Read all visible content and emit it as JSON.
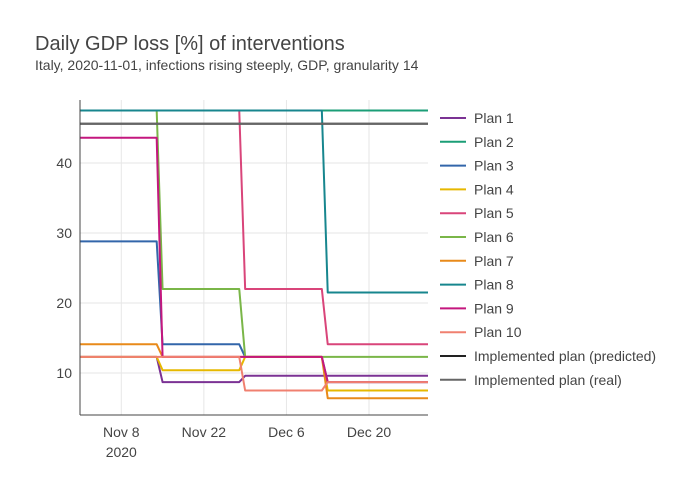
{
  "chart_data": {
    "type": "line",
    "title": "Daily GDP loss [%] of interventions",
    "subtitle": "Italy, 2020-11-01, infections rising steeply, GDP, granularity 14",
    "xlabel": "",
    "ylabel": "",
    "x_start": "2020-11-01",
    "x_end": "2020-12-30",
    "ylim": [
      4,
      49
    ],
    "yticks": [
      10,
      20,
      30,
      40
    ],
    "xticks": [
      {
        "date": "2020-11-08",
        "label": "Nov 8",
        "sublabel": "2020"
      },
      {
        "date": "2020-11-22",
        "label": "Nov 22",
        "sublabel": ""
      },
      {
        "date": "2020-12-06",
        "label": "Dec 6",
        "sublabel": ""
      },
      {
        "date": "2020-12-20",
        "label": "Dec 20",
        "sublabel": ""
      }
    ],
    "grid": true,
    "legend_position": "right",
    "series": [
      {
        "name": "Plan 1",
        "color": "#7b3294",
        "points": [
          [
            "2020-11-01",
            12.3
          ],
          [
            "2020-11-14",
            12.3
          ],
          [
            "2020-11-15",
            8.7
          ],
          [
            "2020-11-28",
            8.7
          ],
          [
            "2020-11-29",
            9.6
          ],
          [
            "2020-12-12",
            9.6
          ],
          [
            "2020-12-13",
            9.6
          ],
          [
            "2020-12-30",
            9.6
          ]
        ]
      },
      {
        "name": "Plan 2",
        "color": "#1b9e77",
        "points": [
          [
            "2020-11-01",
            47.5
          ],
          [
            "2020-12-30",
            47.5
          ]
        ]
      },
      {
        "name": "Plan 3",
        "color": "#3366aa",
        "points": [
          [
            "2020-11-01",
            28.8
          ],
          [
            "2020-11-14",
            28.8
          ],
          [
            "2020-11-15",
            14.1
          ],
          [
            "2020-11-28",
            14.1
          ],
          [
            "2020-11-29",
            12.3
          ],
          [
            "2020-12-12",
            12.3
          ],
          [
            "2020-12-13",
            8.7
          ],
          [
            "2020-12-30",
            8.7
          ]
        ]
      },
      {
        "name": "Plan 4",
        "color": "#e6b800",
        "points": [
          [
            "2020-11-01",
            12.3
          ],
          [
            "2020-11-14",
            12.3
          ],
          [
            "2020-11-15",
            10.4
          ],
          [
            "2020-11-28",
            10.4
          ],
          [
            "2020-11-29",
            12.3
          ],
          [
            "2020-12-12",
            12.3
          ],
          [
            "2020-12-13",
            7.5
          ],
          [
            "2020-12-30",
            7.5
          ]
        ]
      },
      {
        "name": "Plan 5",
        "color": "#d9457a",
        "points": [
          [
            "2020-11-01",
            47.5
          ],
          [
            "2020-11-28",
            47.5
          ],
          [
            "2020-11-29",
            22.0
          ],
          [
            "2020-12-12",
            22.0
          ],
          [
            "2020-12-13",
            14.1
          ],
          [
            "2020-12-30",
            14.1
          ]
        ]
      },
      {
        "name": "Plan 6",
        "color": "#7ab648",
        "points": [
          [
            "2020-11-01",
            47.5
          ],
          [
            "2020-11-14",
            47.5
          ],
          [
            "2020-11-15",
            22.0
          ],
          [
            "2020-11-28",
            22.0
          ],
          [
            "2020-11-29",
            12.3
          ],
          [
            "2020-12-30",
            12.3
          ]
        ]
      },
      {
        "name": "Plan 7",
        "color": "#e88a1a",
        "points": [
          [
            "2020-11-01",
            14.1
          ],
          [
            "2020-11-14",
            14.1
          ],
          [
            "2020-11-15",
            12.3
          ],
          [
            "2020-11-28",
            12.3
          ],
          [
            "2020-11-29",
            12.3
          ],
          [
            "2020-12-12",
            12.3
          ],
          [
            "2020-12-13",
            6.4
          ],
          [
            "2020-12-30",
            6.4
          ]
        ]
      },
      {
        "name": "Plan 8",
        "color": "#17868e",
        "points": [
          [
            "2020-11-01",
            47.5
          ],
          [
            "2020-12-12",
            47.5
          ],
          [
            "2020-12-13",
            21.5
          ],
          [
            "2020-12-30",
            21.5
          ]
        ]
      },
      {
        "name": "Plan 9",
        "color": "#c4177e",
        "points": [
          [
            "2020-11-01",
            43.6
          ],
          [
            "2020-11-14",
            43.6
          ],
          [
            "2020-11-15",
            12.3
          ],
          [
            "2020-11-28",
            12.3
          ],
          [
            "2020-11-29",
            12.3
          ],
          [
            "2020-12-12",
            12.3
          ],
          [
            "2020-12-13",
            8.7
          ],
          [
            "2020-12-30",
            8.7
          ]
        ]
      },
      {
        "name": "Plan 10",
        "color": "#f08070",
        "points": [
          [
            "2020-11-01",
            12.3
          ],
          [
            "2020-11-28",
            12.3
          ],
          [
            "2020-11-29",
            7.5
          ],
          [
            "2020-12-12",
            7.5
          ],
          [
            "2020-12-13",
            8.7
          ],
          [
            "2020-12-30",
            8.7
          ]
        ]
      },
      {
        "name": "Implemented plan (predicted)",
        "color": "#222222",
        "points": [
          [
            "2020-11-01",
            45.6
          ],
          [
            "2020-12-30",
            45.6
          ]
        ]
      },
      {
        "name": "Implemented plan (real)",
        "color": "#666666",
        "points": [
          [
            "2020-11-01",
            45.6
          ],
          [
            "2020-12-30",
            45.6
          ]
        ]
      }
    ]
  }
}
